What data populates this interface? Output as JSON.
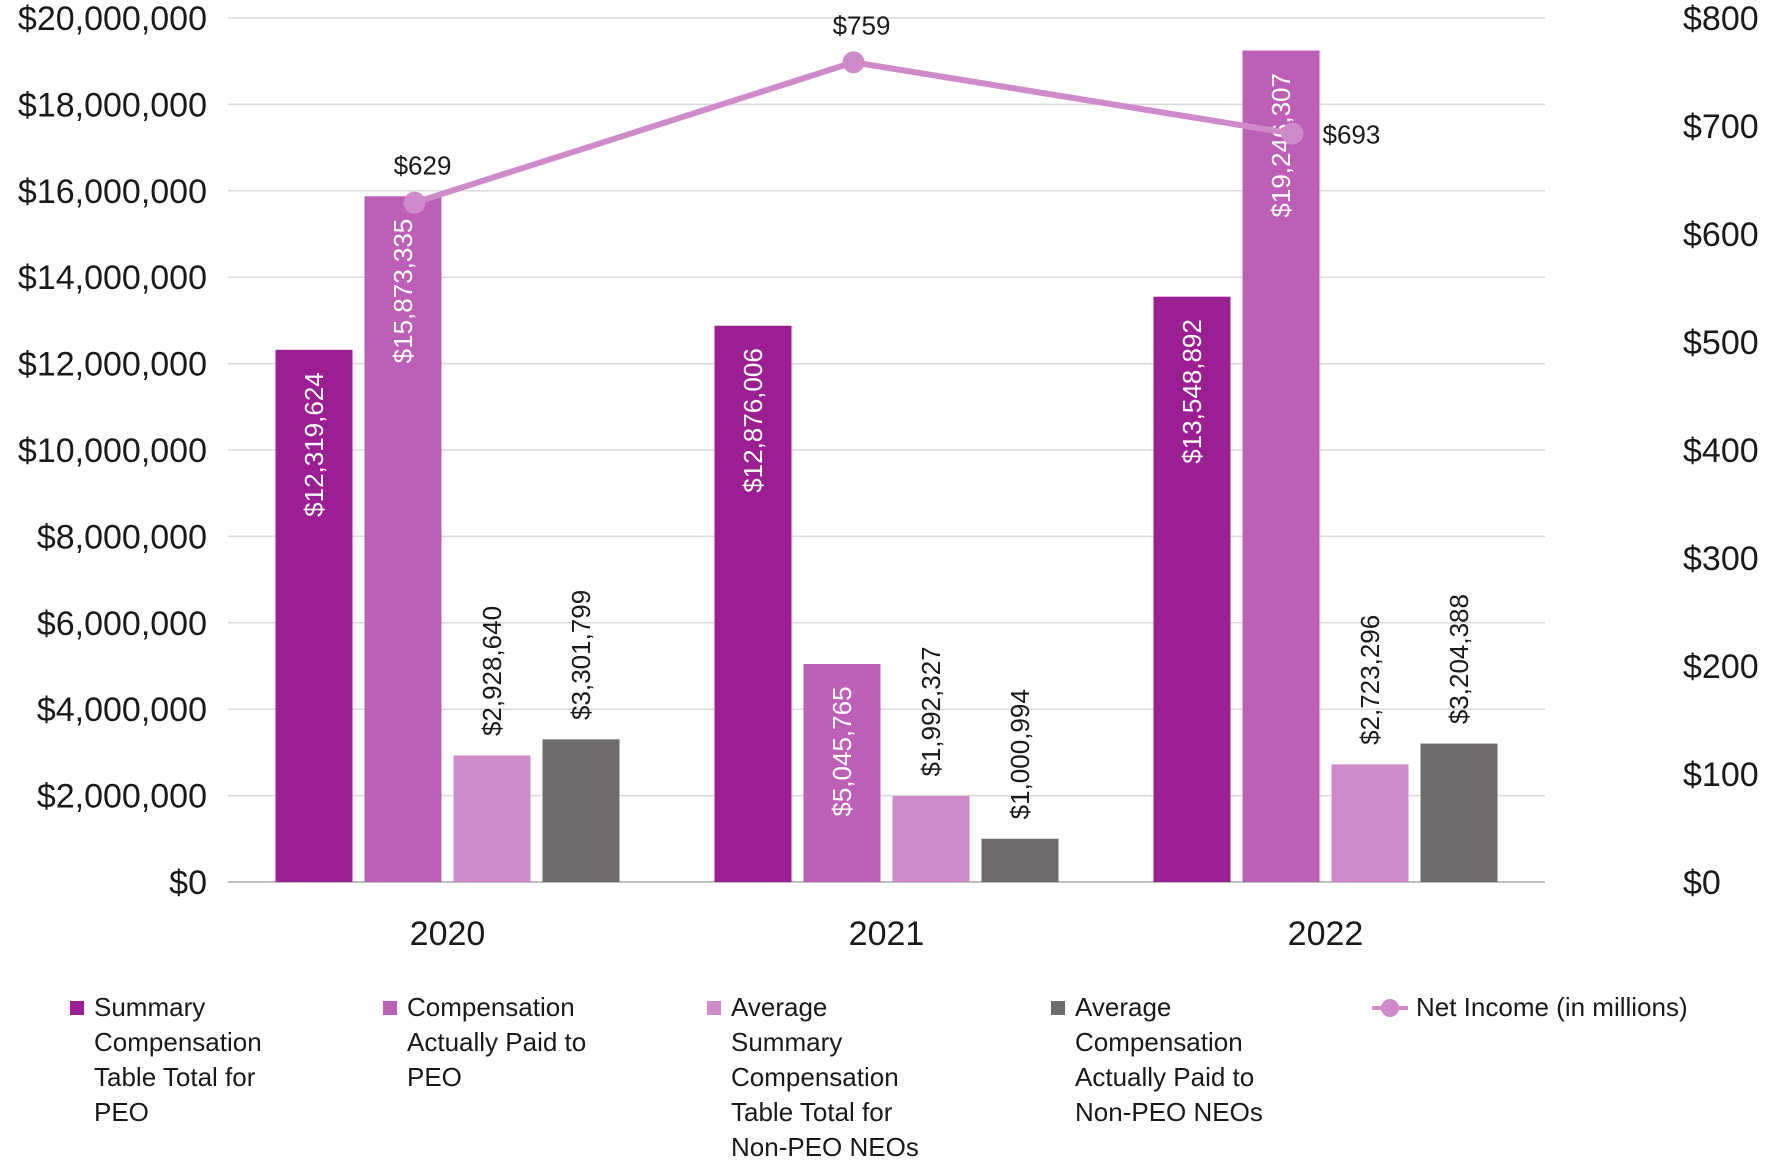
{
  "chart_data": {
    "type": "bar",
    "categories": [
      "2020",
      "2021",
      "2022"
    ],
    "series": [
      {
        "name": "Summary Compensation Table Total for PEO",
        "values": [
          12319624,
          12876006,
          13548892
        ],
        "labels": [
          "$12,319,624",
          "$12,876,006",
          "$13,548,892"
        ],
        "color": "#9b1e93"
      },
      {
        "name": "Compensation Actually Paid to PEO",
        "values": [
          15873335,
          5045765,
          19246307
        ],
        "labels": [
          "$15,873,335",
          "$5,045,765",
          "$19,246,307"
        ],
        "color": "#bd5fb6"
      },
      {
        "name": "Average Summary Compensation Table Total for Non-PEO NEOs",
        "values": [
          2928640,
          1992327,
          2723296
        ],
        "labels": [
          "$2,928,640",
          "$1,992,327",
          "$2,723,296"
        ],
        "color": "#cf8bc9"
      },
      {
        "name": "Average Compensation Actually Paid to Non-PEO NEOs",
        "values": [
          3301799,
          1000994,
          3204388
        ],
        "labels": [
          "$3,301,799",
          "$1,000,994",
          "$3,204,388"
        ],
        "color": "#6d6b6c"
      }
    ],
    "line_series": {
      "name": "Net Income (in millions)",
      "values": [
        629,
        759,
        693
      ],
      "labels": [
        "$629",
        "$759",
        "$693"
      ],
      "color": "#cf8bc9"
    },
    "y_left": {
      "min": 0,
      "max": 20000000,
      "ticks": [
        "$0",
        "$2,000,000",
        "$4,000,000",
        "$6,000,000",
        "$8,000,000",
        "$10,000,000",
        "$12,000,000",
        "$14,000,000",
        "$16,000,000",
        "$18,000,000",
        "$20,000,000"
      ]
    },
    "y_right": {
      "min": 0,
      "max": 800,
      "ticks": [
        "$0",
        "$100",
        "$200",
        "$300",
        "$400",
        "$500",
        "$600",
        "$700",
        "$800"
      ]
    },
    "grid": true,
    "legend_position": "bottom",
    "title": "",
    "xlabel": "",
    "ylabel": ""
  },
  "legend": {
    "items": [
      {
        "label_lines": [
          "Summary",
          "Compensation",
          "Table Total for",
          "PEO"
        ],
        "color": "#9b1e93",
        "kind": "square"
      },
      {
        "label_lines": [
          "Compensation",
          "Actually Paid to",
          "PEO"
        ],
        "color": "#bd5fb6",
        "kind": "square"
      },
      {
        "label_lines": [
          "Average",
          "Summary",
          "Compensation",
          "Table Total for",
          "Non-PEO NEOs"
        ],
        "color": "#cf8bc9",
        "kind": "square"
      },
      {
        "label_lines": [
          "Average",
          "Compensation",
          "Actually Paid to",
          "Non-PEO NEOs"
        ],
        "color": "#6d6b6c",
        "kind": "square"
      },
      {
        "label_lines": [
          "Net Income (in millions)"
        ],
        "color": "#cf8bc9",
        "kind": "line"
      }
    ]
  }
}
